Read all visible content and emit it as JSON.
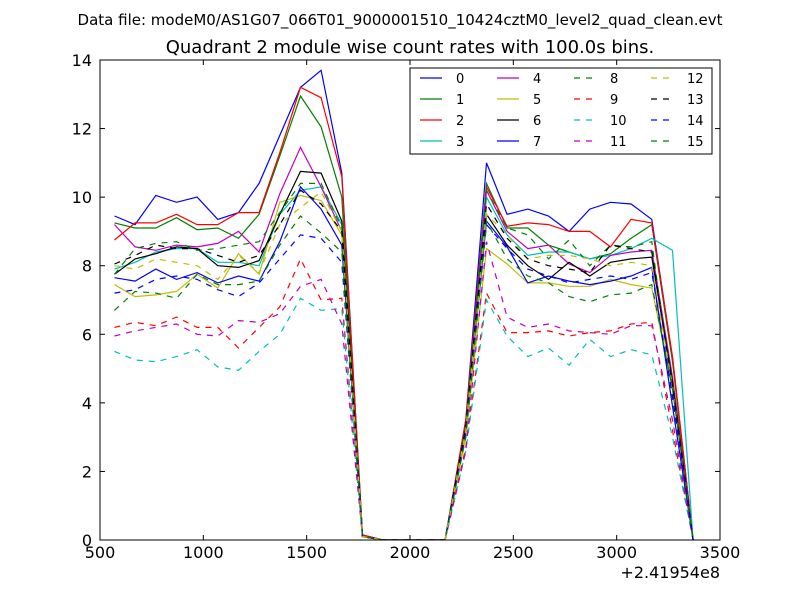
{
  "header": {
    "data_file": "Data file: modeM0/AS1G07_066T01_9000001510_10424cztM0_level2_quad_clean.evt"
  },
  "chart_data": {
    "type": "line",
    "title": "Quadrant 2 module wise count rates with 100.0s bins.",
    "xlabel": "",
    "ylabel": "",
    "xlim": [
      500,
      3500
    ],
    "ylim": [
      0,
      14
    ],
    "x_offset_label": "+2.41954e8",
    "x_ticks": [
      500,
      1000,
      1500,
      2000,
      2500,
      3000,
      3500
    ],
    "y_ticks": [
      0,
      2,
      4,
      6,
      8,
      10,
      12,
      14
    ],
    "grid": false,
    "legend": {
      "placement": "top-right",
      "columns": 4
    },
    "x": [
      570,
      670,
      770,
      870,
      970,
      1070,
      1170,
      1270,
      1370,
      1470,
      1570,
      1670,
      1770,
      1870,
      1970,
      2070,
      2170,
      2270,
      2370,
      2470,
      2570,
      2670,
      2770,
      2870,
      2970,
      3070,
      3170,
      3270,
      3370
    ],
    "series": [
      {
        "name": "0",
        "color": "#0000ff",
        "style": "solid",
        "values": [
          9.45,
          9.2,
          10.05,
          9.85,
          10.0,
          9.35,
          9.55,
          10.4,
          11.8,
          13.2,
          13.7,
          10.7,
          0.15,
          0.0,
          0.0,
          0.0,
          0.0,
          3.5,
          11.0,
          9.5,
          9.65,
          9.45,
          9.0,
          9.65,
          9.85,
          9.8,
          9.35,
          5.3,
          0.0
        ]
      },
      {
        "name": "1",
        "color": "#008000",
        "style": "solid",
        "values": [
          9.25,
          9.1,
          9.1,
          9.4,
          9.05,
          9.1,
          8.8,
          9.5,
          11.2,
          12.95,
          12.05,
          10.0,
          0.15,
          0.0,
          0.0,
          0.0,
          0.0,
          3.4,
          10.4,
          9.1,
          9.1,
          8.6,
          8.4,
          8.2,
          8.35,
          8.8,
          9.2,
          5.2,
          0.0
        ]
      },
      {
        "name": "2",
        "color": "#ff0000",
        "style": "solid",
        "values": [
          8.75,
          9.25,
          9.25,
          9.5,
          9.2,
          9.2,
          9.55,
          9.55,
          11.3,
          13.2,
          12.9,
          10.6,
          0.15,
          0.0,
          0.0,
          0.0,
          0.0,
          3.5,
          10.3,
          9.15,
          9.25,
          9.2,
          9.0,
          9.0,
          8.55,
          9.35,
          9.25,
          5.35,
          0.0
        ]
      },
      {
        "name": "3",
        "color": "#00bfbf",
        "style": "solid",
        "values": [
          7.9,
          8.1,
          8.4,
          8.5,
          8.5,
          8.1,
          8.1,
          8.0,
          9.5,
          10.2,
          10.3,
          9.2,
          0.1,
          0.0,
          0.0,
          0.0,
          0.0,
          3.3,
          10.0,
          8.9,
          8.3,
          8.4,
          8.4,
          8.2,
          8.3,
          8.5,
          8.8,
          8.45,
          0.0
        ]
      },
      {
        "name": "4",
        "color": "#bf00bf",
        "style": "solid",
        "values": [
          9.2,
          8.55,
          8.45,
          8.6,
          8.55,
          8.65,
          9.0,
          8.4,
          10.1,
          11.45,
          10.3,
          9.0,
          0.1,
          0.0,
          0.0,
          0.0,
          0.0,
          3.3,
          10.2,
          9.0,
          8.5,
          8.6,
          8.05,
          7.8,
          8.3,
          8.4,
          8.45,
          4.75,
          0.0
        ]
      },
      {
        "name": "5",
        "color": "#bfbf00",
        "style": "solid",
        "values": [
          7.45,
          7.1,
          7.15,
          7.25,
          7.75,
          7.35,
          8.35,
          7.75,
          9.85,
          10.05,
          9.9,
          8.9,
          0.1,
          0.0,
          0.0,
          0.0,
          0.0,
          3.0,
          8.5,
          8.05,
          7.5,
          7.5,
          7.4,
          7.4,
          7.6,
          7.45,
          7.35,
          4.4,
          0.0
        ]
      },
      {
        "name": "6",
        "color": "#000000",
        "style": "solid",
        "values": [
          7.75,
          8.2,
          8.35,
          8.55,
          8.5,
          8.0,
          7.95,
          8.15,
          9.5,
          10.75,
          10.7,
          9.3,
          0.1,
          0.0,
          0.0,
          0.0,
          0.0,
          3.3,
          9.5,
          8.6,
          8.0,
          7.6,
          8.1,
          7.7,
          8.1,
          8.2,
          8.25,
          4.6,
          0.0
        ]
      },
      {
        "name": "7",
        "color": "#0000ff",
        "style": "solid",
        "values": [
          7.65,
          7.55,
          7.9,
          7.6,
          7.8,
          7.5,
          7.7,
          7.55,
          8.7,
          10.3,
          9.65,
          8.6,
          0.1,
          0.0,
          0.0,
          0.0,
          0.0,
          3.2,
          9.3,
          8.55,
          7.5,
          7.7,
          7.55,
          7.45,
          7.55,
          7.7,
          7.95,
          3.9,
          0.0
        ]
      },
      {
        "name": "8",
        "color": "#008000",
        "style": "dashed",
        "values": [
          7.75,
          8.5,
          8.65,
          8.7,
          8.45,
          8.5,
          8.6,
          8.7,
          9.55,
          10.4,
          10.4,
          9.1,
          0.1,
          0.0,
          0.0,
          0.0,
          0.0,
          3.3,
          10.2,
          9.1,
          8.9,
          8.2,
          8.75,
          8.0,
          8.6,
          8.55,
          8.7,
          4.1,
          0.0
        ]
      },
      {
        "name": "9",
        "color": "#ff0000",
        "style": "dashed",
        "values": [
          6.2,
          6.35,
          6.25,
          6.5,
          6.2,
          6.2,
          5.6,
          6.2,
          6.8,
          8.2,
          7.0,
          7.05,
          0.1,
          0.0,
          0.0,
          0.0,
          0.0,
          2.7,
          7.2,
          6.05,
          6.05,
          6.1,
          5.95,
          6.05,
          6.1,
          6.3,
          6.35,
          3.2,
          0.0
        ]
      },
      {
        "name": "10",
        "color": "#00bfbf",
        "style": "dashed",
        "values": [
          5.5,
          5.25,
          5.2,
          5.35,
          5.55,
          5.05,
          4.95,
          5.5,
          6.0,
          7.05,
          6.7,
          6.75,
          0.1,
          0.0,
          0.0,
          0.0,
          0.0,
          2.6,
          7.0,
          5.95,
          5.35,
          5.6,
          5.1,
          5.85,
          5.35,
          5.55,
          5.4,
          3.0,
          0.0
        ]
      },
      {
        "name": "11",
        "color": "#bf00bf",
        "style": "dashed",
        "values": [
          5.95,
          6.1,
          6.2,
          6.3,
          6.0,
          5.95,
          6.4,
          6.35,
          6.6,
          7.4,
          7.6,
          6.3,
          0.1,
          0.0,
          0.0,
          0.0,
          0.0,
          2.6,
          8.7,
          6.5,
          6.2,
          6.3,
          6.1,
          6.05,
          6.0,
          6.25,
          6.25,
          3.5,
          0.0
        ]
      },
      {
        "name": "12",
        "color": "#bfbf00",
        "style": "dashed",
        "values": [
          8.0,
          7.9,
          8.2,
          8.1,
          8.0,
          7.6,
          8.3,
          7.8,
          9.2,
          9.7,
          10.15,
          9.0,
          0.1,
          0.0,
          0.0,
          0.0,
          0.0,
          3.2,
          9.5,
          8.9,
          8.2,
          8.3,
          8.3,
          8.2,
          8.0,
          8.1,
          8.0,
          4.5,
          0.0
        ]
      },
      {
        "name": "13",
        "color": "#000000",
        "style": "dashed",
        "values": [
          8.05,
          8.3,
          8.6,
          8.5,
          8.5,
          8.3,
          8.1,
          8.3,
          9.2,
          10.2,
          9.8,
          9.0,
          0.1,
          0.0,
          0.0,
          0.0,
          0.0,
          3.3,
          9.8,
          8.8,
          8.2,
          8.0,
          7.9,
          7.8,
          8.6,
          8.5,
          8.4,
          4.5,
          0.0
        ]
      },
      {
        "name": "14",
        "color": "#0000ff",
        "style": "dashed",
        "values": [
          7.2,
          7.3,
          7.6,
          7.7,
          7.6,
          7.3,
          7.1,
          7.5,
          8.2,
          8.9,
          8.8,
          8.1,
          0.1,
          0.0,
          0.0,
          0.0,
          0.0,
          3.1,
          9.2,
          8.5,
          7.9,
          7.7,
          7.5,
          7.6,
          7.7,
          7.6,
          7.8,
          4.2,
          0.0
        ]
      },
      {
        "name": "15",
        "color": "#008000",
        "style": "dashed",
        "values": [
          6.7,
          7.25,
          7.2,
          7.05,
          7.75,
          7.45,
          7.45,
          7.55,
          8.6,
          9.45,
          8.95,
          8.4,
          0.1,
          0.0,
          0.0,
          0.0,
          0.0,
          3.0,
          9.3,
          8.2,
          7.7,
          7.5,
          7.1,
          6.95,
          7.15,
          7.2,
          7.45,
          4.4,
          0.0
        ]
      }
    ]
  }
}
